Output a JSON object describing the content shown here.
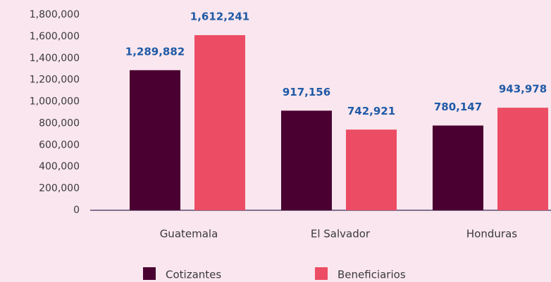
{
  "chart_data": {
    "type": "bar",
    "categories": [
      "Guatemala",
      "El Salvador",
      "Honduras"
    ],
    "series": [
      {
        "name": "Cotizantes",
        "color": "#4a0030",
        "values": [
          1289882,
          917156,
          780147
        ],
        "value_labels": [
          "1,289,882",
          "917,156",
          "780,147"
        ]
      },
      {
        "name": "Beneficiarios",
        "color": "#ec4d64",
        "values": [
          1612241,
          742921,
          943978
        ],
        "value_labels": [
          "1,612,241",
          "742,921",
          "943,978"
        ]
      }
    ],
    "ylim": [
      0,
      1800000
    ],
    "yticks": [
      0,
      {
        "value": 200000,
        "label": "200,000"
      },
      {
        "value": 400000,
        "label": "400,000"
      },
      {
        "value": 600000,
        "label": "600,000"
      },
      {
        "value": 800000,
        "label": "800,000"
      },
      {
        "value": 1000000,
        "label": "1,000,000"
      },
      {
        "value": 1200000,
        "label": "1,200,000"
      },
      {
        "value": 1400000,
        "label": "1,400,000"
      },
      {
        "value": 1600000,
        "label": "1,600,000"
      },
      {
        "value": 1800000,
        "label": "1,800,000"
      }
    ]
  }
}
